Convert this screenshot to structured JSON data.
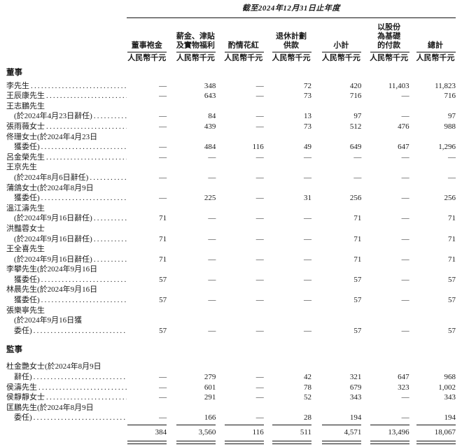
{
  "header": {
    "period": "截至2024年12月31日止年度",
    "unit": "人民幣千元",
    "columns": [
      {
        "id": "director-fees",
        "lines": [
          "董事袍金"
        ]
      },
      {
        "id": "salaries-allowances-benefits",
        "lines": [
          "薪金、津貼",
          "及實物福利"
        ]
      },
      {
        "id": "discretionary-bonus",
        "lines": [
          "酌情花紅"
        ]
      },
      {
        "id": "retirement-scheme-contributions",
        "lines": [
          "退休計劃",
          "供款"
        ]
      },
      {
        "id": "subtotal",
        "lines": [
          "小計"
        ]
      },
      {
        "id": "share-based-payments",
        "lines": [
          "以股份",
          "為基礎",
          "的付款"
        ]
      },
      {
        "id": "total",
        "lines": [
          "總計"
        ]
      }
    ]
  },
  "sections": [
    {
      "title": "董事",
      "rows": [
        {
          "name_lines": [
            "李先生"
          ],
          "values": [
            "—",
            "348",
            "—",
            "72",
            "420",
            "11,403",
            "11,823"
          ]
        },
        {
          "name_lines": [
            "王辰康先生"
          ],
          "values": [
            "—",
            "643",
            "—",
            "73",
            "716",
            "—",
            "716"
          ]
        },
        {
          "name_lines": [
            "王志鵬先生",
            "(於2024年4月23日辭任)"
          ],
          "values": [
            "—",
            "84",
            "—",
            "13",
            "97",
            "—",
            "97"
          ]
        },
        {
          "name_lines": [
            "張雨薇女士"
          ],
          "values": [
            "—",
            "439",
            "—",
            "73",
            "512",
            "476",
            "988"
          ]
        },
        {
          "name_lines": [
            "佟珊女士(於2024年4月23日",
            "獲委任)"
          ],
          "values": [
            "—",
            "484",
            "116",
            "49",
            "649",
            "647",
            "1,296"
          ]
        },
        {
          "name_lines": [
            "呂金榮先生"
          ],
          "values": [
            "—",
            "—",
            "—",
            "—",
            "—",
            "—",
            "—"
          ]
        },
        {
          "name_lines": [
            "王京先生",
            "(於2024年8月6日辭任)"
          ],
          "values": [
            "—",
            "—",
            "—",
            "—",
            "—",
            "—",
            "—"
          ]
        },
        {
          "name_lines": [
            "蒲鴿女士(於2024年8月9日",
            "獲委任)"
          ],
          "values": [
            "—",
            "225",
            "—",
            "31",
            "256",
            "—",
            "256"
          ]
        },
        {
          "name_lines": [
            "溫江濤先生",
            "(於2024年9月16日辭任)"
          ],
          "values": [
            "71",
            "—",
            "—",
            "—",
            "71",
            "—",
            "71"
          ]
        },
        {
          "name_lines": [
            "洪豔蓉女士",
            "(於2024年9月16日辭任)"
          ],
          "values": [
            "71",
            "—",
            "—",
            "—",
            "71",
            "—",
            "71"
          ]
        },
        {
          "name_lines": [
            "王全喜先生",
            "(於2024年9月16日辭任)"
          ],
          "values": [
            "71",
            "—",
            "—",
            "—",
            "71",
            "—",
            "71"
          ]
        },
        {
          "name_lines": [
            "李攀先生(於2024年9月16日",
            "獲委任)"
          ],
          "values": [
            "57",
            "—",
            "—",
            "—",
            "57",
            "—",
            "57"
          ]
        },
        {
          "name_lines": [
            "林晨先生(於2024年9月16日",
            "獲委任)"
          ],
          "values": [
            "57",
            "—",
            "—",
            "—",
            "57",
            "—",
            "57"
          ]
        },
        {
          "name_lines": [
            "張樂寧先生",
            "(於2024年9月16日獲",
            "委任)"
          ],
          "values": [
            "57",
            "—",
            "—",
            "—",
            "57",
            "—",
            "57"
          ]
        }
      ]
    },
    {
      "title": "監事",
      "rows": [
        {
          "name_lines": [
            "杜金艷女士(於2024年8月9日",
            "辭任)"
          ],
          "values": [
            "—",
            "279",
            "—",
            "42",
            "321",
            "647",
            "968"
          ]
        },
        {
          "name_lines": [
            "侯濤先生"
          ],
          "values": [
            "—",
            "601",
            "—",
            "78",
            "679",
            "323",
            "1,002"
          ]
        },
        {
          "name_lines": [
            "侯靜靜女士"
          ],
          "values": [
            "—",
            "291",
            "—",
            "52",
            "343",
            "—",
            "343"
          ]
        },
        {
          "name_lines": [
            "匡鵬先生(於2024年8月9日",
            "委任)"
          ],
          "values": [
            "—",
            "166",
            "—",
            "28",
            "194",
            "—",
            "194"
          ]
        }
      ]
    }
  ],
  "grand_total": {
    "values": [
      "384",
      "3,560",
      "116",
      "511",
      "4,571",
      "13,496",
      "18,067"
    ]
  },
  "colors": {
    "text": "#1b1b1b",
    "rule": "#141414",
    "background": "#ffffff"
  }
}
